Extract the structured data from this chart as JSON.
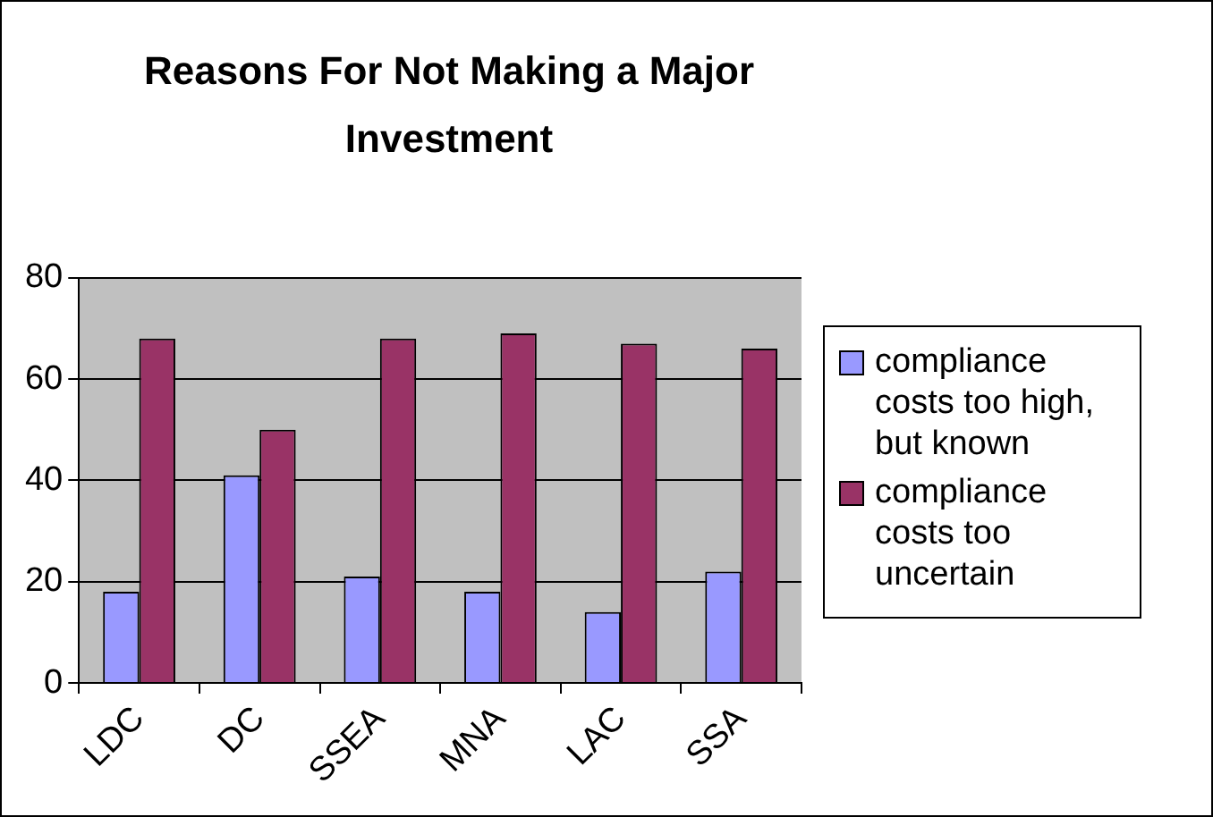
{
  "chart_data": {
    "type": "bar",
    "title": "Reasons For Not Making a Major Investment",
    "categories": [
      "LDC",
      "DC",
      "SSEA",
      "MNA",
      "LAC",
      "SSA"
    ],
    "series": [
      {
        "name": "compliance costs too high, but known",
        "color": "#9999ff",
        "values": [
          18,
          41,
          21,
          18,
          14,
          22
        ]
      },
      {
        "name": "compliance costs too uncertain",
        "color": "#993366",
        "values": [
          68,
          50,
          68,
          69,
          67,
          66
        ]
      }
    ],
    "ylim": [
      0,
      80
    ],
    "yticks": [
      0,
      20,
      40,
      60,
      80
    ],
    "grid": "y",
    "legend": "right"
  }
}
